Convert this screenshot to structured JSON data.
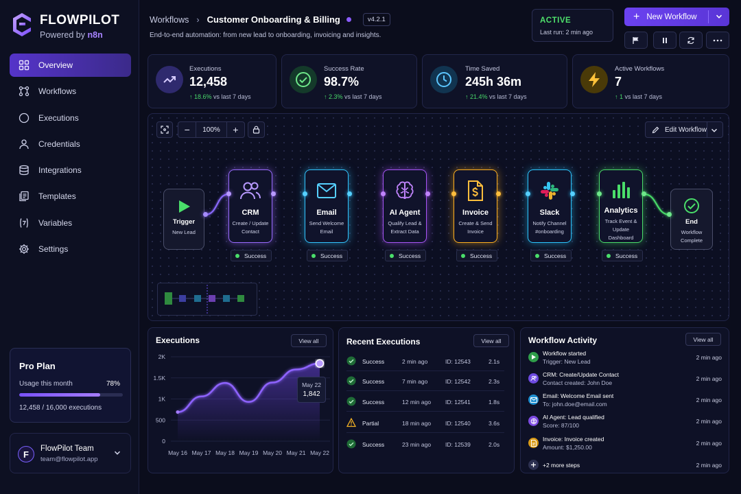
{
  "brand": {
    "name": "FLOWPILOT",
    "powered_prefix": "Powered by",
    "powered_by": "n8n"
  },
  "sidebar": {
    "items": [
      {
        "label": "Overview",
        "icon": "grid-icon"
      },
      {
        "label": "Workflows",
        "icon": "workflow-icon"
      },
      {
        "label": "Executions",
        "icon": "circle-icon"
      },
      {
        "label": "Credentials",
        "icon": "user-icon"
      },
      {
        "label": "Integrations",
        "icon": "database-icon"
      },
      {
        "label": "Templates",
        "icon": "templates-icon"
      },
      {
        "label": "Variables",
        "icon": "variable-icon"
      },
      {
        "label": "Settings",
        "icon": "gear-icon"
      }
    ],
    "plan": {
      "title": "Pro Plan",
      "usage_label": "Usage this month",
      "usage_pct": "78%",
      "usage_fraction": 0.78,
      "count": "12,458 / 16,000 executions"
    },
    "team": {
      "initial": "F",
      "name": "FlowPilot Team",
      "email": "team@flowpilot.app"
    }
  },
  "header": {
    "breadcrumb_root": "Workflows",
    "title": "Customer Onboarding & Billing",
    "version": "v4.2.1",
    "description": "End-to-end automation: from new lead to onboarding, invoicing and insights.",
    "status": "ACTIVE",
    "last_run": "Last run: 2 min ago",
    "new_button": "New Workflow"
  },
  "stats": [
    {
      "label": "Executions",
      "value": "12,458",
      "delta": "↑ 18.6%",
      "delta_note": "vs last 7 days"
    },
    {
      "label": "Success Rate",
      "value": "98.7%",
      "delta": "↑ 2.3%",
      "delta_note": "vs last 7 days"
    },
    {
      "label": "Time Saved",
      "value": "245h 36m",
      "delta": "↑ 21.4%",
      "delta_note": "vs last 7 days"
    },
    {
      "label": "Active Workflows",
      "value": "7",
      "delta": "↑ 1",
      "delta_note": "vs last 7 days"
    }
  ],
  "canvas": {
    "zoom": "100%",
    "edit_button": "Edit Workflow",
    "trigger": {
      "title": "Trigger",
      "sub": "New Lead"
    },
    "end": {
      "title": "End",
      "sub": "Workflow Complete"
    },
    "nodes": [
      {
        "title": "CRM",
        "sub": "Create / Update Contact",
        "status": "Success",
        "color": "#9a6bff"
      },
      {
        "title": "Email",
        "sub": "Send Welcome Email",
        "status": "Success",
        "color": "#32c6ff"
      },
      {
        "title": "AI Agent",
        "sub": "Qualify Lead & Extract Data",
        "status": "Success",
        "color": "#a855f7"
      },
      {
        "title": "Invoice",
        "sub": "Create & Send Invoice",
        "status": "Success",
        "color": "#ffb020"
      },
      {
        "title": "Slack",
        "sub": "Notify Channel #onboarding",
        "status": "Success",
        "color": "#2cc7ff"
      },
      {
        "title": "Analytics",
        "sub": "Track Event & Update Dashboard",
        "status": "Success",
        "color": "#4ade6a"
      }
    ]
  },
  "executions_chart": {
    "title": "Executions",
    "view_all": "View all",
    "tooltip_date": "May 22",
    "tooltip_value": "1,842"
  },
  "chart_data": {
    "type": "area",
    "categories": [
      "May 16",
      "May 17",
      "May 18",
      "May 19",
      "May 20",
      "May 21",
      "May 22"
    ],
    "values": [
      690,
      1060,
      1380,
      930,
      1390,
      1700,
      1842
    ],
    "ytick_labels": [
      "0",
      "500",
      "1K",
      "1.5K",
      "2K"
    ],
    "ytick_values": [
      0,
      500,
      1000,
      1500,
      2000
    ],
    "ylim": [
      0,
      2000
    ],
    "title": "Executions"
  },
  "recent": {
    "title": "Recent Executions",
    "view_all": "View all",
    "rows": [
      {
        "status": "Success",
        "time": "2 min ago",
        "id": "ID: 12543",
        "dur": "2.1s",
        "kind": "success"
      },
      {
        "status": "Success",
        "time": "7 min ago",
        "id": "ID: 12542",
        "dur": "2.3s",
        "kind": "success"
      },
      {
        "status": "Success",
        "time": "12 min ago",
        "id": "ID: 12541",
        "dur": "1.8s",
        "kind": "success"
      },
      {
        "status": "Partial",
        "time": "18 min ago",
        "id": "ID: 12540",
        "dur": "3.6s",
        "kind": "warning"
      },
      {
        "status": "Success",
        "time": "23 min ago",
        "id": "ID: 12539",
        "dur": "2.0s",
        "kind": "success"
      }
    ]
  },
  "activity": {
    "title": "Workflow Activity",
    "view_all": "View all",
    "items": [
      {
        "title": "Workflow started",
        "sub": "Trigger: New Lead",
        "time": "2 min ago",
        "icon": "play-icon",
        "color": "#2f9e4a"
      },
      {
        "title": "CRM: Create/Update Contact",
        "sub": "Contact created: John Doe",
        "time": "2 min ago",
        "icon": "users-icon",
        "color": "#6d4ae0"
      },
      {
        "title": "Email: Welcome Email sent",
        "sub": "To: john.doe@email.com",
        "time": "2 min ago",
        "icon": "mail-icon",
        "color": "#1f8fd0"
      },
      {
        "title": "AI Agent: Lead qualified",
        "sub": "Score: 87/100",
        "time": "2 min ago",
        "icon": "brain-icon",
        "color": "#7c4ae0"
      },
      {
        "title": "Invoice: Invoice created",
        "sub": "Amount: $1,250.00",
        "time": "2 min ago",
        "icon": "invoice-icon",
        "color": "#d89a16"
      },
      {
        "title": "+2 more steps",
        "sub": "",
        "time": "2 min ago",
        "icon": "plus-icon",
        "color": "#2c3050"
      }
    ]
  }
}
